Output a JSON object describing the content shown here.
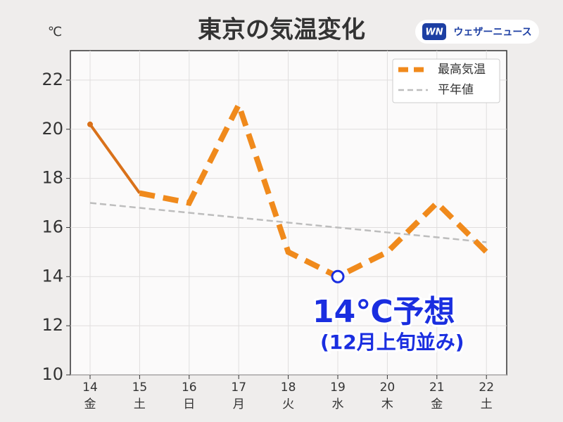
{
  "chart_data": {
    "type": "line",
    "title": "東京の気温変化",
    "y_unit": "℃",
    "brand": "ウェザーニュース",
    "brand_mark": "WN",
    "categories": [
      "14",
      "15",
      "16",
      "17",
      "18",
      "19",
      "20",
      "21",
      "22"
    ],
    "weekdays": [
      "金",
      "土",
      "日",
      "月",
      "火",
      "水",
      "木",
      "金",
      "土"
    ],
    "category_colors": [
      "#333333",
      "#2a8ad6",
      "#d62a2a",
      "#333333",
      "#333333",
      "#333333",
      "#333333",
      "#333333",
      "#2a8ad6"
    ],
    "series": [
      {
        "name": "最高気温",
        "color": "#f08a1c",
        "values": [
          20.2,
          17.4,
          17,
          21,
          15,
          14,
          15,
          17,
          15
        ],
        "solid_segments": 1,
        "solid_color": "#d9711a"
      },
      {
        "name": "平年値",
        "color": "#bdbdbd",
        "values": [
          17,
          16.8,
          16.6,
          16.4,
          16.2,
          16,
          15.8,
          15.6,
          15.4
        ]
      }
    ],
    "ylim": [
      10,
      23.2
    ],
    "yticks": [
      10,
      12,
      14,
      16,
      18,
      20,
      22
    ],
    "grid": true,
    "legend": "upper right",
    "highlight_index": 5,
    "highlight_color": "#1a2ee0",
    "annotations": [
      "14℃予想",
      "(12月上旬並み)"
    ]
  }
}
